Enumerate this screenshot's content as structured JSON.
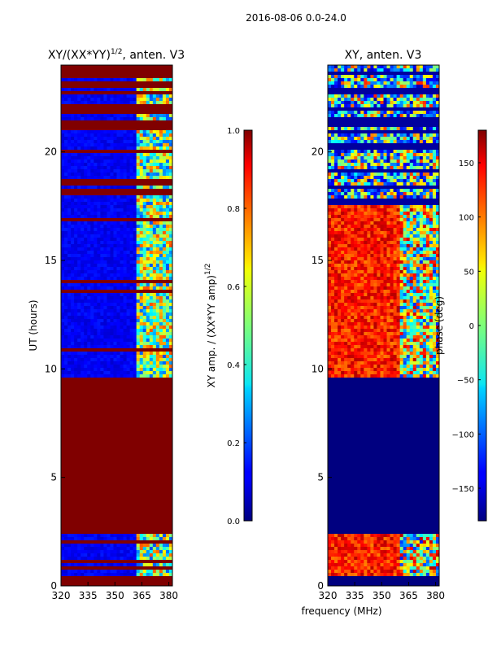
{
  "chart_data": {
    "type": "heatmap",
    "suptitle": "2016-08-06 0.0-24.0",
    "shared_xlabel": "frequency (MHz)",
    "panels": [
      {
        "title_main": "XY/(XX*YY)",
        "title_sup": "1/2",
        "title_tail": ", anten. V3",
        "ylabel": "UT (hours)",
        "xlim": [
          320,
          382
        ],
        "ylim": [
          0,
          24
        ],
        "xticks": [
          "320",
          "335",
          "350",
          "365",
          "380"
        ],
        "yticks": [
          "0",
          "5",
          "10",
          "15",
          "20"
        ],
        "colorbar": {
          "label_main": "XY amp. / (XX*YY amp)",
          "label_sup": "1/2",
          "ticks": [
            "0.0",
            "0.2",
            "0.4",
            "0.6",
            "0.8",
            "1.0"
          ],
          "range": [
            0,
            1
          ]
        }
      },
      {
        "title_main": "XY, anten. V3",
        "ylabel": "",
        "xlim": [
          320,
          382
        ],
        "ylim": [
          0,
          24
        ],
        "xticks": [
          "320",
          "335",
          "350",
          "365",
          "380"
        ],
        "yticks": [
          "0",
          "5",
          "10",
          "15",
          "20"
        ],
        "colorbar": {
          "label_main": "phase (deg)",
          "ticks": [
            "150",
            "100",
            "50",
            "0",
            "−50",
            "−100",
            "−150"
          ],
          "range": [
            -180,
            180
          ]
        }
      }
    ],
    "data_regions": [
      {
        "panel": "amplitude",
        "ut_range": [
          0,
          0.5
        ],
        "description": "masked",
        "value": 1.0
      },
      {
        "panel": "amplitude",
        "ut_range": [
          0.5,
          2.4
        ],
        "description": "low amplitude, higher above 362 MHz",
        "value": 0.1
      },
      {
        "panel": "amplitude",
        "ut_range": [
          2.4,
          9.6
        ],
        "description": "masked",
        "value": 1.0
      },
      {
        "panel": "amplitude",
        "ut_range": [
          9.6,
          17.8
        ],
        "description": "low amplitude with masked rows",
        "value": 0.1
      },
      {
        "panel": "amplitude",
        "ut_range": [
          17.8,
          23.6
        ],
        "description": "alternating masked/low rows",
        "value": 0.1
      },
      {
        "panel": "amplitude",
        "ut_range": [
          23.6,
          24
        ],
        "description": "masked",
        "value": 1.0
      },
      {
        "panel": "phase",
        "ut_range": [
          0,
          0.5
        ],
        "description": "flagged",
        "value": -180
      },
      {
        "panel": "phase",
        "ut_range": [
          0.5,
          2.4
        ],
        "description": "phase near +100 to +170 deg",
        "value": 130
      },
      {
        "panel": "phase",
        "ut_range": [
          2.4,
          9.6
        ],
        "description": "flagged",
        "value": -180
      },
      {
        "panel": "phase",
        "ut_range": [
          9.6,
          17.5
        ],
        "description": "phase near +100 to +170 deg",
        "value": 130
      },
      {
        "panel": "phase",
        "ut_range": [
          17.5,
          24
        ],
        "description": "noisy rows, mostly low/negative",
        "value": -120
      }
    ]
  }
}
